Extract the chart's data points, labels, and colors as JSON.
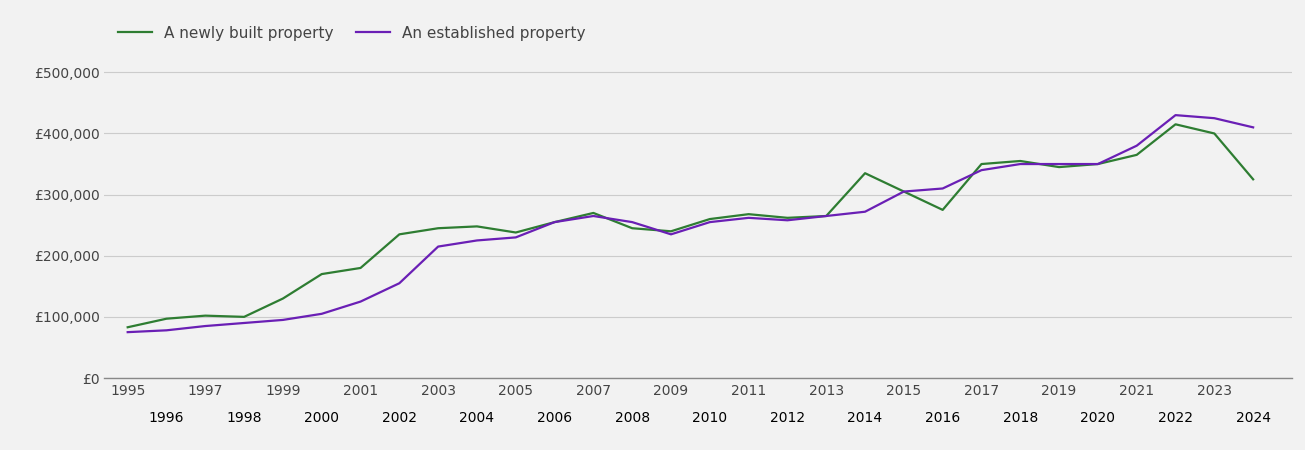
{
  "years": [
    1995,
    1996,
    1997,
    1998,
    1999,
    2000,
    2001,
    2002,
    2003,
    2004,
    2005,
    2006,
    2007,
    2008,
    2009,
    2010,
    2011,
    2012,
    2013,
    2014,
    2015,
    2016,
    2017,
    2018,
    2019,
    2020,
    2021,
    2022,
    2023,
    2024
  ],
  "new_build": [
    83000,
    97000,
    102000,
    100000,
    130000,
    170000,
    180000,
    235000,
    245000,
    248000,
    238000,
    255000,
    270000,
    245000,
    240000,
    260000,
    268000,
    262000,
    265000,
    335000,
    305000,
    275000,
    350000,
    355000,
    345000,
    350000,
    365000,
    415000,
    400000,
    325000
  ],
  "established": [
    75000,
    78000,
    85000,
    90000,
    95000,
    105000,
    125000,
    155000,
    215000,
    225000,
    230000,
    255000,
    265000,
    255000,
    235000,
    255000,
    262000,
    258000,
    265000,
    272000,
    305000,
    310000,
    340000,
    350000,
    350000,
    350000,
    380000,
    430000,
    425000,
    410000
  ],
  "new_build_color": "#2e7d32",
  "established_color": "#6a1fb5",
  "new_build_label": "A newly built property",
  "established_label": "An established property",
  "yticks": [
    0,
    100000,
    200000,
    300000,
    400000,
    500000
  ],
  "ytick_labels": [
    "£0",
    "£100,000",
    "£200,000",
    "£300,000",
    "£400,000",
    "£500,000"
  ],
  "ylim": [
    0,
    530000
  ],
  "xlim": [
    1994.4,
    2025.0
  ],
  "background_color": "#f2f2f2",
  "grid_color": "#cccccc",
  "text_color": "#444444",
  "line_width": 1.6,
  "legend_fontsize": 11,
  "tick_fontsize": 10
}
